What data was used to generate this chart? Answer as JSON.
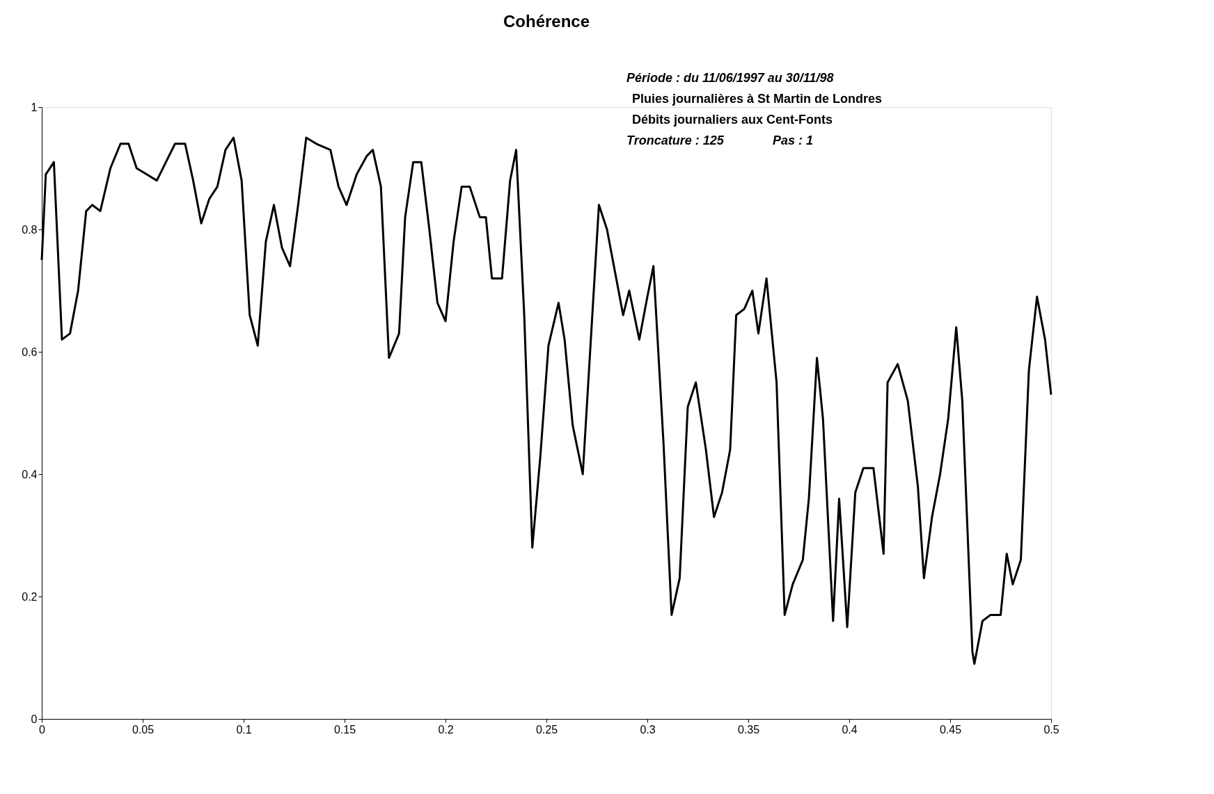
{
  "chart_data": {
    "type": "line",
    "title": "Cohérence",
    "annotations": [
      "Période : du 11/06/1997 au 30/11/98",
      "Pluies journalières à St Martin de Londres",
      "Débits journaliers aux Cent-Fonts",
      "Troncature : 125",
      "Pas : 1"
    ],
    "x": [
      0,
      0.002,
      0.006,
      0.01,
      0.014,
      0.018,
      0.022,
      0.025,
      0.029,
      0.034,
      0.039,
      0.043,
      0.047,
      0.052,
      0.057,
      0.063,
      0.066,
      0.071,
      0.075,
      0.079,
      0.083,
      0.087,
      0.091,
      0.095,
      0.099,
      0.103,
      0.107,
      0.111,
      0.115,
      0.119,
      0.123,
      0.127,
      0.131,
      0.136,
      0.143,
      0.147,
      0.151,
      0.156,
      0.161,
      0.164,
      0.168,
      0.172,
      0.177,
      0.18,
      0.184,
      0.188,
      0.192,
      0.196,
      0.2,
      0.204,
      0.208,
      0.212,
      0.217,
      0.22,
      0.223,
      0.228,
      0.232,
      0.235,
      0.239,
      0.243,
      0.247,
      0.251,
      0.256,
      0.259,
      0.263,
      0.268,
      0.272,
      0.276,
      0.28,
      0.284,
      0.288,
      0.291,
      0.296,
      0.3,
      0.303,
      0.308,
      0.312,
      0.316,
      0.32,
      0.324,
      0.329,
      0.333,
      0.337,
      0.341,
      0.344,
      0.348,
      0.352,
      0.355,
      0.359,
      0.364,
      0.368,
      0.372,
      0.377,
      0.38,
      0.384,
      0.387,
      0.392,
      0.395,
      0.399,
      0.403,
      0.407,
      0.412,
      0.417,
      0.419,
      0.424,
      0.429,
      0.434,
      0.437,
      0.441,
      0.445,
      0.449,
      0.453,
      0.456,
      0.461,
      0.462,
      0.466,
      0.47,
      0.475,
      0.478,
      0.481,
      0.485,
      0.489,
      0.493,
      0.497,
      0.5
    ],
    "series": [
      {
        "color": "#000000",
        "values": [
          0.75,
          0.89,
          0.91,
          0.62,
          0.63,
          0.7,
          0.83,
          0.84,
          0.83,
          0.9,
          0.94,
          0.94,
          0.9,
          0.89,
          0.88,
          0.92,
          0.94,
          0.94,
          0.88,
          0.81,
          0.85,
          0.87,
          0.93,
          0.95,
          0.88,
          0.66,
          0.61,
          0.78,
          0.84,
          0.77,
          0.74,
          0.84,
          0.95,
          0.94,
          0.93,
          0.87,
          0.84,
          0.89,
          0.92,
          0.93,
          0.87,
          0.59,
          0.63,
          0.82,
          0.91,
          0.91,
          0.8,
          0.68,
          0.65,
          0.78,
          0.87,
          0.87,
          0.82,
          0.82,
          0.72,
          0.72,
          0.88,
          0.93,
          0.66,
          0.28,
          0.43,
          0.61,
          0.68,
          0.62,
          0.48,
          0.4,
          0.62,
          0.84,
          0.8,
          0.73,
          0.66,
          0.7,
          0.62,
          0.69,
          0.74,
          0.45,
          0.17,
          0.23,
          0.51,
          0.55,
          0.44,
          0.33,
          0.37,
          0.44,
          0.66,
          0.67,
          0.7,
          0.63,
          0.72,
          0.55,
          0.17,
          0.22,
          0.26,
          0.36,
          0.59,
          0.49,
          0.16,
          0.36,
          0.15,
          0.37,
          0.41,
          0.41,
          0.27,
          0.55,
          0.58,
          0.52,
          0.38,
          0.23,
          0.33,
          0.4,
          0.49,
          0.64,
          0.52,
          0.11,
          0.09,
          0.16,
          0.17,
          0.17,
          0.27,
          0.22,
          0.26,
          0.57,
          0.69,
          0.62,
          0.53
        ]
      }
    ],
    "xlim": [
      0,
      0.5
    ],
    "xticks": [
      0,
      0.05,
      0.1,
      0.15,
      0.2,
      0.25,
      0.3,
      0.35,
      0.4,
      0.45,
      0.5
    ],
    "ylim": [
      0,
      1
    ],
    "yticks": [
      0,
      0.2,
      0.4,
      0.6,
      0.8,
      1
    ],
    "grid": false
  }
}
